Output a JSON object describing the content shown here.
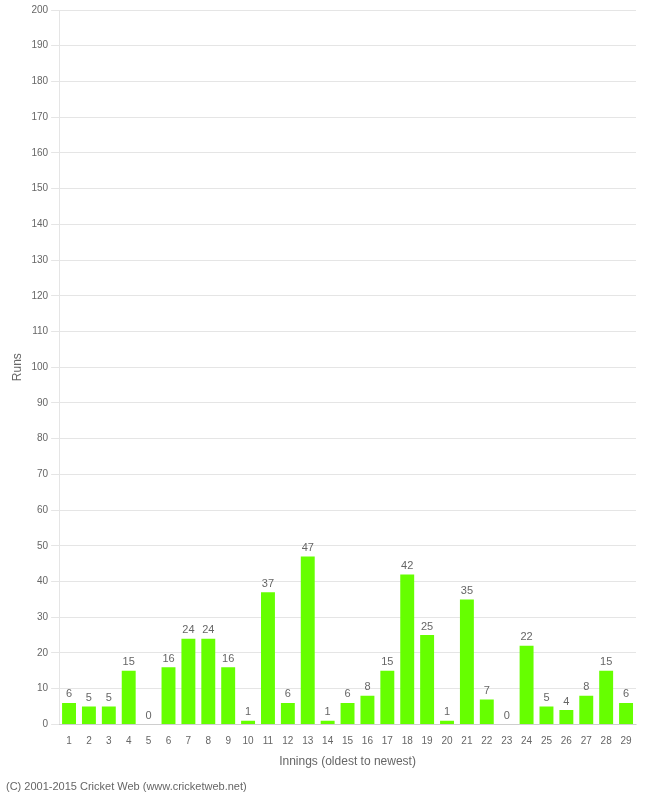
{
  "chart_data": {
    "type": "bar",
    "categories": [
      "1",
      "2",
      "3",
      "4",
      "5",
      "6",
      "7",
      "8",
      "9",
      "10",
      "11",
      "12",
      "13",
      "14",
      "15",
      "16",
      "17",
      "18",
      "19",
      "20",
      "21",
      "22",
      "23",
      "24",
      "25",
      "26",
      "27",
      "28",
      "29"
    ],
    "values": [
      6,
      5,
      5,
      15,
      0,
      16,
      24,
      24,
      16,
      1,
      37,
      6,
      47,
      1,
      6,
      8,
      15,
      42,
      25,
      1,
      35,
      7,
      0,
      22,
      5,
      4,
      8,
      15,
      6
    ],
    "color": "#66ff00",
    "x_label": "Innings (oldest to newest)",
    "y_label": "Runs",
    "annotations": [
      "(C) 2001-2015 Cricket Web (www.cricketweb.net)"
    ],
    "ylim": [
      0,
      200
    ],
    "yticks": [
      0,
      10,
      20,
      30,
      40,
      50,
      60,
      70,
      80,
      90,
      100,
      110,
      120,
      130,
      140,
      150,
      160,
      170,
      180,
      190,
      200
    ],
    "grid": true,
    "data_labels": true
  }
}
